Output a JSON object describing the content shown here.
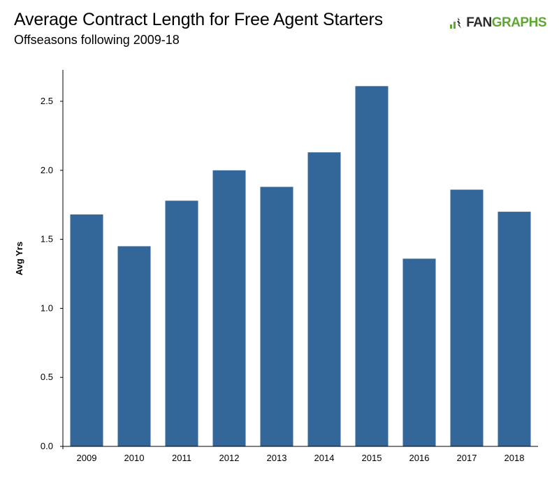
{
  "header": {
    "title": "Average Contract Length for Free Agent Starters",
    "subtitle": "Offseasons following 2009-18",
    "brand_prefix": "FAN",
    "brand_suffix": "GRAPHS"
  },
  "colors": {
    "bar": "#336699",
    "axis": "#000000",
    "brand_green": "#5ea832",
    "brand_dark": "#2b2b2b"
  },
  "chart_data": {
    "type": "bar",
    "title": "Average Contract Length for Free Agent Starters",
    "subtitle": "Offseasons following 2009-18",
    "xlabel": "",
    "ylabel": "Avg Yrs",
    "categories": [
      "2009",
      "2010",
      "2011",
      "2012",
      "2013",
      "2014",
      "2015",
      "2016",
      "2017",
      "2018"
    ],
    "values": [
      1.68,
      1.45,
      1.78,
      2.0,
      1.88,
      2.13,
      2.61,
      1.36,
      1.86,
      1.7
    ],
    "ylim": [
      0,
      2.75
    ],
    "yticks": [
      "0.0",
      "0.5",
      "1.0",
      "1.5",
      "2.0",
      "2.5"
    ],
    "grid": false,
    "legend": "none"
  }
}
